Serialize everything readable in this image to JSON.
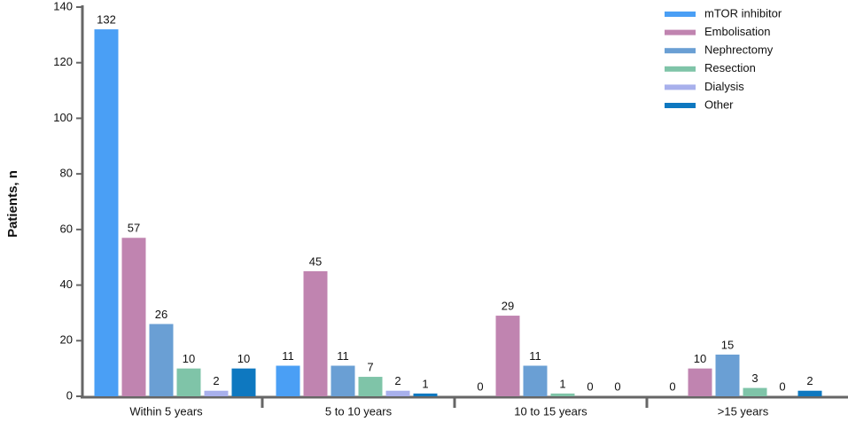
{
  "chart_data": {
    "type": "bar",
    "ylabel": "Patients, n",
    "categories": [
      "Within 5 years",
      "5 to 10 years",
      "10 to 15 years",
      ">15 years"
    ],
    "series": [
      {
        "name": "mTOR inhibitor",
        "color": "#4a9ff5",
        "values": [
          132,
          11,
          0,
          0
        ]
      },
      {
        "name": "Embolisation",
        "color": "#c084b0",
        "values": [
          57,
          45,
          29,
          10
        ]
      },
      {
        "name": "Nephrectomy",
        "color": "#6a9fd4",
        "values": [
          26,
          11,
          11,
          15
        ]
      },
      {
        "name": "Resection",
        "color": "#7fc4a8",
        "values": [
          10,
          7,
          1,
          3
        ]
      },
      {
        "name": "Dialysis",
        "color": "#a8b0ec",
        "values": [
          2,
          2,
          0,
          0
        ]
      },
      {
        "name": "Other",
        "color": "#0e78c0",
        "values": [
          10,
          1,
          0,
          2
        ]
      }
    ],
    "ylim": [
      0,
      140
    ],
    "yticks": [
      0,
      20,
      40,
      60,
      80,
      100,
      120,
      140
    ],
    "legend": "upper right"
  }
}
